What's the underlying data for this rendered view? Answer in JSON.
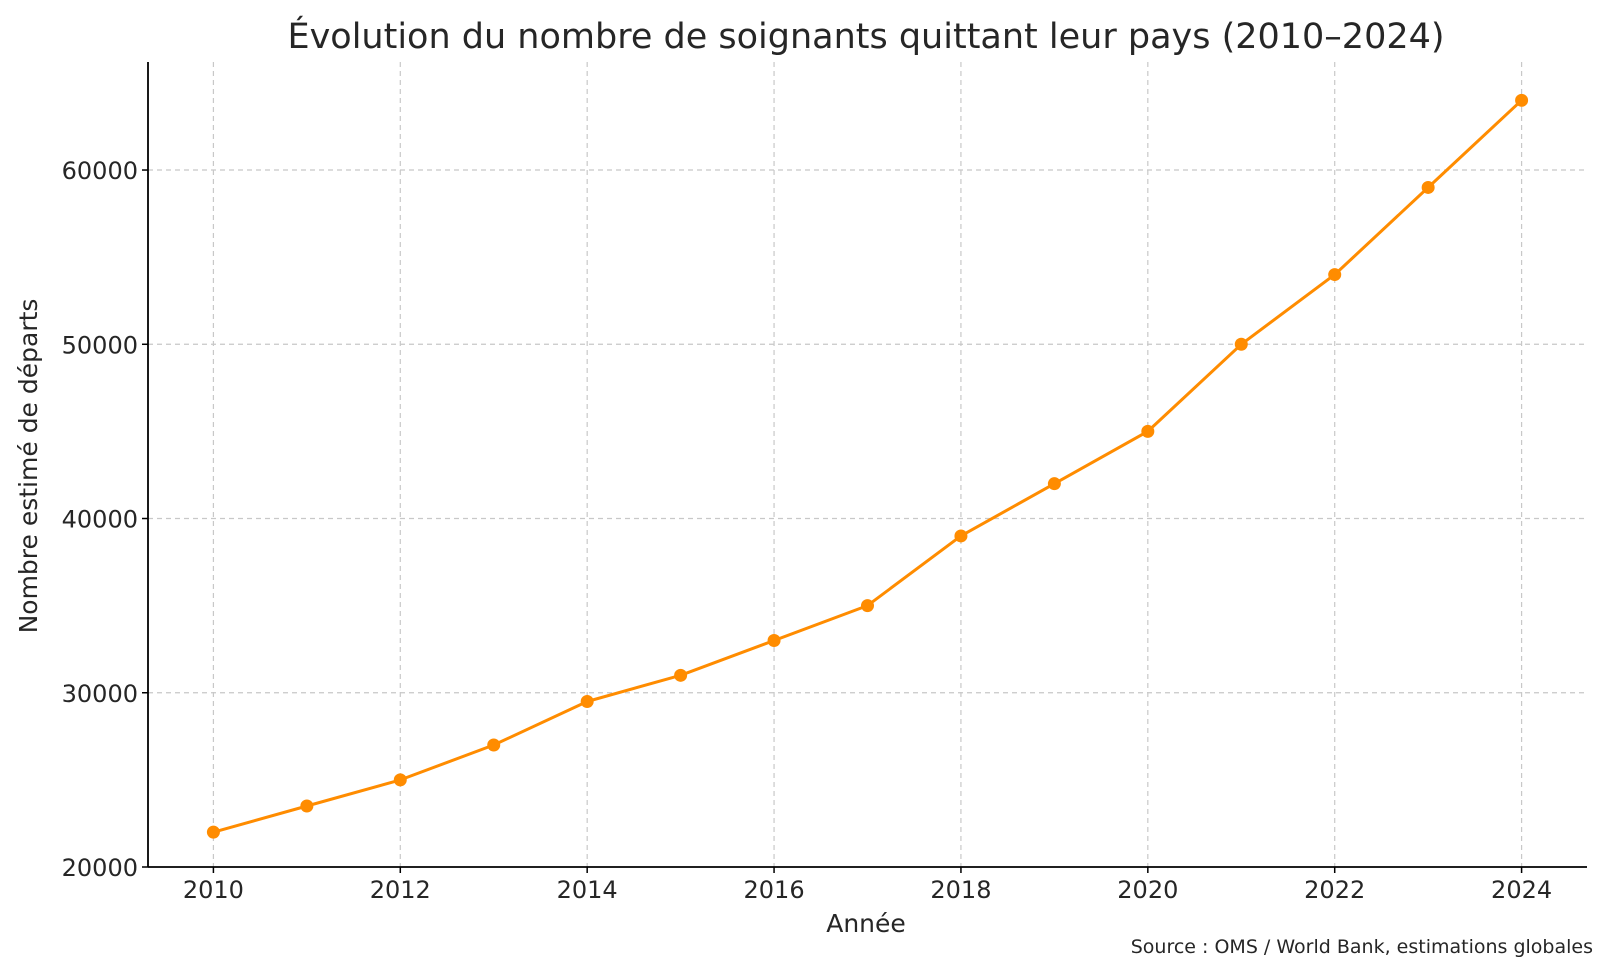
{
  "chart_data": {
    "type": "line",
    "title": "Évolution du nombre de soignants quittant leur pays (2010–2024)",
    "xlabel": "Année",
    "ylabel": "Nombre estimé de départs",
    "source": "Source : OMS / World Bank, estimations globales",
    "x": [
      2010,
      2011,
      2012,
      2013,
      2014,
      2015,
      2016,
      2017,
      2018,
      2019,
      2020,
      2021,
      2022,
      2023,
      2024
    ],
    "series": [
      {
        "values": [
          22000,
          23500,
          25000,
          27000,
          29500,
          31000,
          33000,
          35000,
          39000,
          42000,
          45000,
          50000,
          54000,
          59000,
          64000
        ],
        "color": "#ff8c00",
        "marker": "circle"
      }
    ],
    "xticks": [
      2010,
      2012,
      2014,
      2016,
      2018,
      2020,
      2022,
      2024
    ],
    "yticks": [
      20000,
      30000,
      40000,
      50000,
      60000
    ],
    "xlim": [
      2009.3,
      2024.7
    ],
    "ylim": [
      20000,
      66200
    ],
    "grid": true,
    "legend": "none"
  }
}
